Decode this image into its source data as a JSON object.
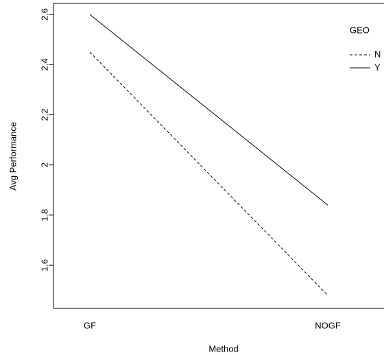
{
  "chart_data": {
    "type": "line",
    "x_label": "Method",
    "y_label": "Avg Performance",
    "categories": [
      "GF",
      "NOGF"
    ],
    "series": [
      {
        "name": "N",
        "color": "#000000",
        "linestyle": "dashed",
        "values": [
          2.45,
          1.48
        ]
      },
      {
        "name": "Y",
        "color": "#000000",
        "linestyle": "solid",
        "values": [
          2.6,
          1.84
        ]
      }
    ],
    "ylim": [
      1.428,
      2.644
    ],
    "yticks": [
      1.6,
      1.8,
      2.0,
      2.2,
      2.4,
      2.6
    ],
    "legend_title": "GEO",
    "legend": "top-right",
    "grid": false
  }
}
